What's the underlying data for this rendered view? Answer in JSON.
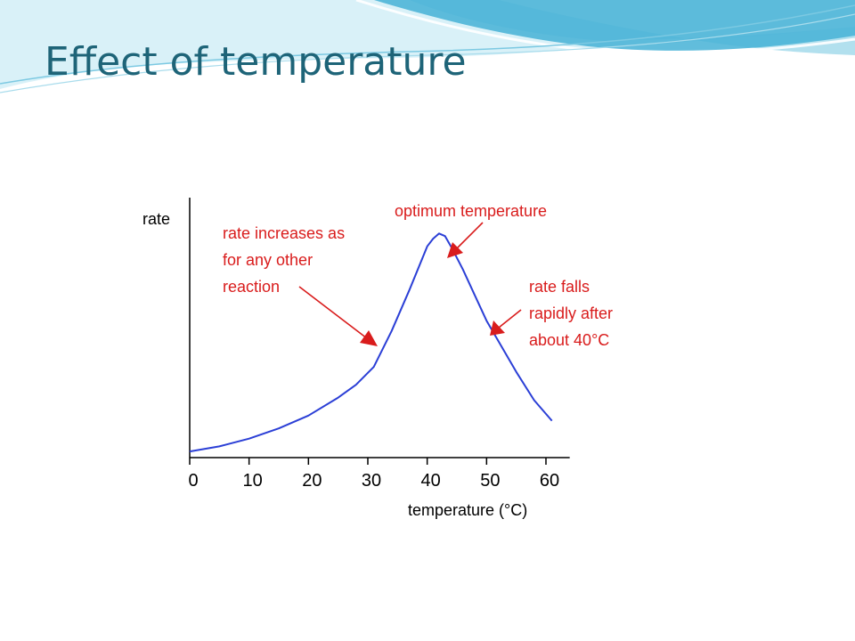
{
  "slide": {
    "title": "Effect of temperature",
    "theme_colors": {
      "title": "#1e6478",
      "wave_dark": "#3fa6c8",
      "wave_light": "#bfe6f2"
    }
  },
  "chart_data": {
    "type": "line",
    "title": "",
    "xlabel": "temperature (°C)",
    "ylabel": "rate",
    "xlim": [
      0,
      64
    ],
    "ylim": [
      0,
      100
    ],
    "x_ticks": [
      0,
      10,
      20,
      30,
      40,
      50,
      60
    ],
    "y_ticks": [],
    "grid": false,
    "legend": "none",
    "series": [
      {
        "color": "#2b3fd6",
        "x": [
          0,
          5,
          10,
          15,
          20,
          25,
          28,
          31,
          34,
          37,
          40,
          41,
          42,
          43,
          44,
          46,
          48,
          50,
          55,
          58,
          61
        ],
        "y": [
          1,
          3,
          6,
          10,
          15,
          22,
          27,
          34,
          48,
          64,
          81,
          84,
          86,
          85,
          81,
          72,
          62,
          52,
          32,
          21,
          13
        ]
      }
    ],
    "annotations": [
      {
        "lines": [
          "optimum temperature"
        ],
        "color": "#d91c1c",
        "points_to": [
          42,
          86
        ]
      },
      {
        "lines": [
          "rate increases as",
          "for any other",
          "reaction"
        ],
        "color": "#d91c1c",
        "points_to": [
          32,
          46
        ]
      },
      {
        "lines": [
          "rate falls",
          "rapidly after",
          "about 40°C"
        ],
        "color": "#d91c1c",
        "points_to": [
          51,
          56
        ]
      }
    ]
  }
}
